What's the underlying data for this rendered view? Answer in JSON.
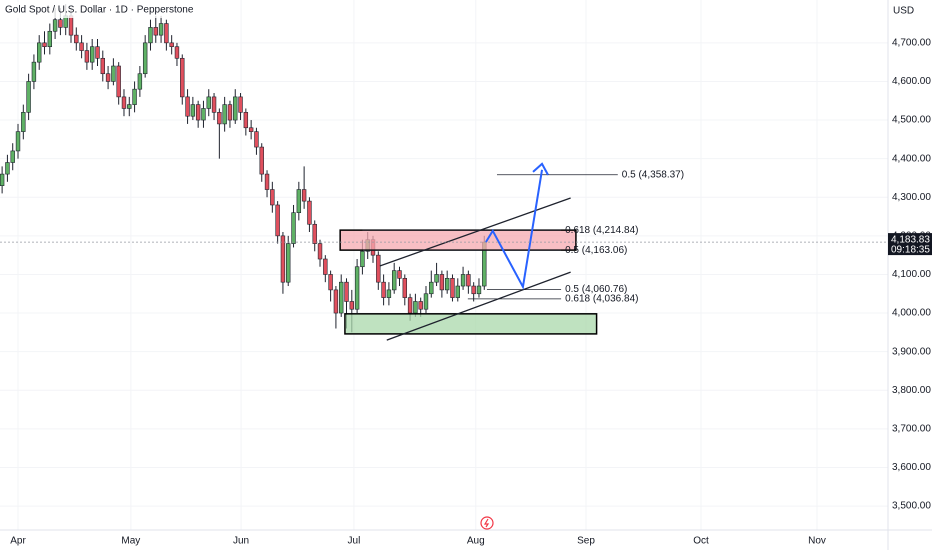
{
  "chart_data": {
    "type": "candlestick",
    "title": "Gold Spot / U.S. Dollar · 1D · Pepperstone",
    "currency": "USD",
    "up_color": "#5fb165",
    "down_color": "#e0505e",
    "xlim": [
      -3.4,
      164.2
    ],
    "ylim": [
      3438,
      4811
    ],
    "xticks": [
      {
        "value": 0,
        "label": "Apr"
      },
      {
        "value": 21.3,
        "label": "May"
      },
      {
        "value": 42.1,
        "label": "Jun"
      },
      {
        "value": 63.4,
        "label": "Jul"
      },
      {
        "value": 86.4,
        "label": "Aug"
      },
      {
        "value": 107.2,
        "label": "Sep"
      },
      {
        "value": 128.9,
        "label": "Oct"
      },
      {
        "value": 150.8,
        "label": "Nov"
      }
    ],
    "yticks": [
      {
        "value": 3500,
        "label": "3,500.00"
      },
      {
        "value": 3600,
        "label": "3,600.00"
      },
      {
        "value": 3700,
        "label": "3,700.00"
      },
      {
        "value": 3800,
        "label": "3,800.00"
      },
      {
        "value": 3900,
        "label": "3,900.00"
      },
      {
        "value": 4000,
        "label": "4,000.00"
      },
      {
        "value": 4100,
        "label": "4,100.00"
      },
      {
        "value": 4200,
        "label": "4,200.00"
      },
      {
        "value": 4300,
        "label": "4,300.00"
      },
      {
        "value": 4400,
        "label": "4,400.00"
      },
      {
        "value": 4500,
        "label": "4,500.00"
      },
      {
        "value": 4600,
        "label": "4,600.00"
      },
      {
        "value": 4700,
        "label": "4,700.00"
      }
    ],
    "x": [
      -3,
      -2,
      -1,
      0,
      1,
      2,
      3,
      4,
      5,
      6,
      7,
      8,
      9,
      10,
      11,
      12,
      13,
      14,
      15,
      16,
      17,
      18,
      19,
      20,
      21,
      22,
      23,
      24,
      25,
      26,
      27,
      28,
      29,
      30,
      31,
      32,
      33,
      34,
      35,
      36,
      37,
      38,
      39,
      40,
      41,
      42,
      43,
      44,
      45,
      46,
      47,
      48,
      49,
      50,
      51,
      52,
      53,
      54,
      55,
      56,
      57,
      58,
      59,
      60,
      61,
      62,
      63,
      64,
      65,
      66,
      67,
      68,
      69,
      70,
      71,
      72,
      73,
      74,
      75,
      76,
      77,
      78,
      79,
      80,
      81,
      82,
      83,
      84,
      85,
      86,
      87,
      88
    ],
    "candles": [
      [
        4330,
        4380,
        4310,
        4360
      ],
      [
        4360,
        4410,
        4340,
        4390
      ],
      [
        4390,
        4440,
        4370,
        4420
      ],
      [
        4420,
        4490,
        4400,
        4470
      ],
      [
        4470,
        4540,
        4450,
        4520
      ],
      [
        4520,
        4620,
        4500,
        4600
      ],
      [
        4600,
        4670,
        4580,
        4650
      ],
      [
        4650,
        4720,
        4630,
        4700
      ],
      [
        4700,
        4730,
        4670,
        4690
      ],
      [
        4690,
        4750,
        4670,
        4730
      ],
      [
        4730,
        4790,
        4710,
        4760
      ],
      [
        4760,
        4790,
        4720,
        4740
      ],
      [
        4740,
        4800,
        4720,
        4770
      ],
      [
        4770,
        4790,
        4700,
        4720
      ],
      [
        4720,
        4740,
        4680,
        4700
      ],
      [
        4700,
        4720,
        4660,
        4680
      ],
      [
        4680,
        4700,
        4630,
        4650
      ],
      [
        4650,
        4710,
        4630,
        4690
      ],
      [
        4690,
        4710,
        4640,
        4660
      ],
      [
        4660,
        4680,
        4600,
        4620
      ],
      [
        4620,
        4640,
        4580,
        4600
      ],
      [
        4600,
        4660,
        4590,
        4640
      ],
      [
        4640,
        4650,
        4540,
        4560
      ],
      [
        4560,
        4580,
        4510,
        4530
      ],
      [
        4530,
        4560,
        4510,
        4540
      ],
      [
        4540,
        4600,
        4520,
        4580
      ],
      [
        4580,
        4640,
        4560,
        4620
      ],
      [
        4620,
        4720,
        4610,
        4700
      ],
      [
        4700,
        4760,
        4680,
        4740
      ],
      [
        4740,
        4770,
        4700,
        4720
      ],
      [
        4720,
        4770,
        4700,
        4750
      ],
      [
        4750,
        4760,
        4680,
        4700
      ],
      [
        4700,
        4720,
        4670,
        4690
      ],
      [
        4690,
        4700,
        4640,
        4660
      ],
      [
        4660,
        4670,
        4540,
        4560
      ],
      [
        4560,
        4580,
        4490,
        4510
      ],
      [
        4510,
        4560,
        4500,
        4540
      ],
      [
        4540,
        4550,
        4480,
        4500
      ],
      [
        4500,
        4550,
        4480,
        4530
      ],
      [
        4530,
        4580,
        4510,
        4560
      ],
      [
        4560,
        4570,
        4500,
        4520
      ],
      [
        4520,
        4530,
        4400,
        4490
      ],
      [
        4490,
        4560,
        4470,
        4540
      ],
      [
        4540,
        4550,
        4480,
        4500
      ],
      [
        4500,
        4580,
        4490,
        4560
      ],
      [
        4560,
        4570,
        4500,
        4520
      ],
      [
        4520,
        4530,
        4460,
        4480
      ],
      [
        4480,
        4500,
        4450,
        4470
      ],
      [
        4470,
        4480,
        4410,
        4430
      ],
      [
        4430,
        4440,
        4340,
        4360
      ],
      [
        4360,
        4370,
        4300,
        4320
      ],
      [
        4320,
        4340,
        4260,
        4280
      ],
      [
        4280,
        4290,
        4180,
        4200
      ],
      [
        4200,
        4210,
        4050,
        4080
      ],
      [
        4080,
        4200,
        4070,
        4180
      ],
      [
        4180,
        4280,
        4170,
        4260
      ],
      [
        4260,
        4340,
        4240,
        4320
      ],
      [
        4320,
        4380,
        4270,
        4290
      ],
      [
        4290,
        4300,
        4210,
        4230
      ],
      [
        4230,
        4240,
        4160,
        4180
      ],
      [
        4180,
        4190,
        4120,
        4140
      ],
      [
        4140,
        4150,
        4080,
        4100
      ],
      [
        4100,
        4110,
        4030,
        4060
      ],
      [
        4060,
        4070,
        3960,
        4000
      ],
      [
        4000,
        4100,
        3990,
        4080
      ],
      [
        4080,
        4090,
        3960,
        4030
      ],
      [
        4030,
        4060,
        3950,
        4010
      ],
      [
        4010,
        4140,
        4000,
        4120
      ],
      [
        4120,
        4190,
        4100,
        4160
      ],
      [
        4160,
        4210,
        4140,
        4190
      ],
      [
        4190,
        4200,
        4130,
        4150
      ],
      [
        4150,
        4160,
        4060,
        4080
      ],
      [
        4080,
        4100,
        4020,
        4040
      ],
      [
        4040,
        4080,
        4020,
        4060
      ],
      [
        4060,
        4130,
        4050,
        4110
      ],
      [
        4110,
        4120,
        4070,
        4090
      ],
      [
        4090,
        4100,
        4020,
        4040
      ],
      [
        4040,
        4050,
        3980,
        4000
      ],
      [
        4000,
        4050,
        3990,
        4030
      ],
      [
        4030,
        4040,
        3990,
        4010
      ],
      [
        4010,
        4070,
        4000,
        4050
      ],
      [
        4050,
        4110,
        4040,
        4080
      ],
      [
        4080,
        4130,
        4070,
        4100
      ],
      [
        4100,
        4110,
        4040,
        4060
      ],
      [
        4060,
        4110,
        4050,
        4090
      ],
      [
        4090,
        4100,
        4030,
        4040
      ],
      [
        4040,
        4090,
        4030,
        4070
      ],
      [
        4070,
        4120,
        4060,
        4100
      ],
      [
        4100,
        4110,
        4050,
        4070
      ],
      [
        4070,
        4080,
        4030,
        4050
      ],
      [
        4050,
        4090,
        4040,
        4070
      ],
      [
        4070,
        4200,
        4060,
        4183.83
      ]
    ],
    "last_price": {
      "value": 4183.83,
      "label": "4,183.83"
    },
    "countdown": "09:18:35",
    "zones": [
      {
        "color": "#f6a9b0",
        "low": 4163.06,
        "high": 4214.84,
        "x": [
          60.8,
          105.3
        ]
      },
      {
        "color": "#a9d8ab",
        "low": 3946,
        "high": 3998,
        "x": [
          61.7,
          109.2
        ]
      }
    ],
    "levels": [
      {
        "label": "0.5 (4,358.37)",
        "value": 4358.37,
        "x": [
          90.4,
          113.2
        ]
      },
      {
        "label": "0.618 (4,214.84)",
        "value": 4214.84,
        "x": [
          65,
          102.5
        ]
      },
      {
        "label": "0.5 (4,163.06)",
        "value": 4163.06,
        "x": [
          65,
          102.5
        ]
      },
      {
        "label": "0.5 (4,060.76)",
        "value": 4060.76,
        "x": [
          88.5,
          102.5
        ]
      },
      {
        "label": "0.618 (4,036.84)",
        "value": 4036.84,
        "x": [
          84.9,
          102.5
        ]
      }
    ],
    "trendlines": [
      {
        "x": [
          68.3,
          104.3
        ],
        "y": [
          4122,
          4298
        ]
      },
      {
        "x": [
          69.6,
          104.3
        ],
        "y": [
          3930,
          4106
        ]
      }
    ],
    "projection": {
      "color": "#2962ff",
      "x": [
        88.3,
        89.6,
        95.3,
        98.9
      ],
      "y": [
        4183.83,
        4213,
        4068,
        4371
      ]
    }
  }
}
